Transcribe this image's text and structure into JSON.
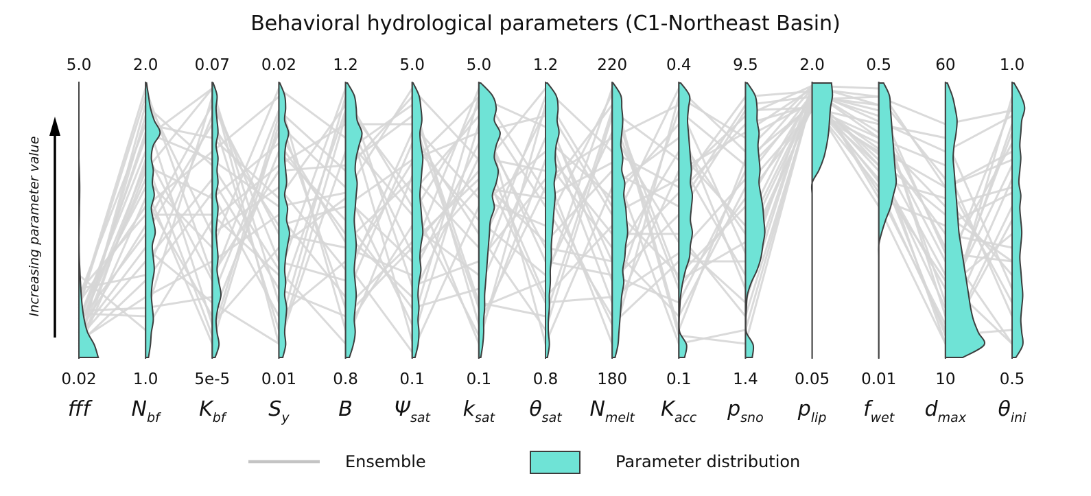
{
  "chart_data": {
    "type": "parallel-coordinates",
    "title": "Behavioral hydrological parameters (C1-Northeast Basin)",
    "ylabel": "Increasing parameter value",
    "colors": {
      "ensemble": "#d6d6d6",
      "distribution_fill": "#6fe3d6",
      "distribution_edge": "#3c3c3c",
      "axis": "#444444"
    },
    "axes": [
      {
        "base": "fff",
        "sub": "",
        "top": "5.0",
        "bottom": "0.02"
      },
      {
        "base": "N",
        "sub": "bf",
        "top": "2.0",
        "bottom": "1.0"
      },
      {
        "base": "K",
        "sub": "bf",
        "top": "0.07",
        "bottom": "5e-5"
      },
      {
        "base": "S",
        "sub": "y",
        "top": "0.02",
        "bottom": "0.01"
      },
      {
        "base": "B",
        "sub": "",
        "top": "1.2",
        "bottom": "0.8"
      },
      {
        "base": "Ψ",
        "sub": "sat",
        "top": "5.0",
        "bottom": "0.1"
      },
      {
        "base": "k",
        "sub": "sat",
        "top": "5.0",
        "bottom": "0.1"
      },
      {
        "base": "θ",
        "sub": "sat",
        "top": "1.2",
        "bottom": "0.8"
      },
      {
        "base": "N",
        "sub": "melt",
        "top": "220",
        "bottom": "180"
      },
      {
        "base": "K",
        "sub": "acc",
        "top": "0.4",
        "bottom": "0.1"
      },
      {
        "base": "p",
        "sub": "sno",
        "top": "9.5",
        "bottom": "1.4"
      },
      {
        "base": "p",
        "sub": "lip",
        "top": "2.0",
        "bottom": "0.05"
      },
      {
        "base": "f",
        "sub": "wet",
        "top": "0.5",
        "bottom": "0.01"
      },
      {
        "base": "d",
        "sub": "max",
        "top": "60",
        "bottom": "10"
      },
      {
        "base": "θ",
        "sub": "ini",
        "top": "1.0",
        "bottom": "0.5"
      }
    ],
    "densities": [
      [
        0,
        0,
        0,
        0,
        0,
        0,
        0,
        0.02,
        0.04,
        0.04,
        0.03,
        0.02,
        0.01,
        0.01,
        0.02,
        0.05,
        0.08,
        0.12,
        0.18,
        0.28,
        0.45,
        0.8,
        1.0
      ],
      [
        0.05,
        0.15,
        0.25,
        0.45,
        0.75,
        0.4,
        0.3,
        0.4,
        0.35,
        0.45,
        0.3,
        0.4,
        0.5,
        0.35,
        0.4,
        0.45,
        0.35,
        0.3,
        0.35,
        0.4,
        0.3,
        0.25,
        0.15
      ],
      [
        0.05,
        0.25,
        0.2,
        0.25,
        0.3,
        0.2,
        0.3,
        0.25,
        0.3,
        0.2,
        0.3,
        0.25,
        0.2,
        0.25,
        0.3,
        0.25,
        0.35,
        0.45,
        0.3,
        0.2,
        0.25,
        0.35,
        0.15
      ],
      [
        0.05,
        0.3,
        0.35,
        0.3,
        0.5,
        0.35,
        0.3,
        0.35,
        0.4,
        0.3,
        0.45,
        0.4,
        0.55,
        0.45,
        0.35,
        0.3,
        0.35,
        0.3,
        0.4,
        0.35,
        0.3,
        0.35,
        0.2
      ],
      [
        0.1,
        0.45,
        0.55,
        0.6,
        0.85,
        0.7,
        0.55,
        0.5,
        0.6,
        0.55,
        0.5,
        0.45,
        0.5,
        0.55,
        0.5,
        0.45,
        0.5,
        0.55,
        0.5,
        0.45,
        0.5,
        0.4,
        0.2
      ],
      [
        0.05,
        0.35,
        0.45,
        0.5,
        0.4,
        0.45,
        0.55,
        0.5,
        0.45,
        0.4,
        0.45,
        0.5,
        0.55,
        0.45,
        0.4,
        0.45,
        0.35,
        0.3,
        0.35,
        0.3,
        0.35,
        0.3,
        0.15
      ],
      [
        0.1,
        0.7,
        0.9,
        0.8,
        1.1,
        0.9,
        0.8,
        1.0,
        0.9,
        0.7,
        0.8,
        0.6,
        0.55,
        0.5,
        0.45,
        0.4,
        0.35,
        0.3,
        0.3,
        0.25,
        0.25,
        0.2,
        0.1
      ],
      [
        0.1,
        0.55,
        0.65,
        0.6,
        0.7,
        0.55,
        0.5,
        0.55,
        0.45,
        0.5,
        0.45,
        0.4,
        0.35,
        0.3,
        0.3,
        0.25,
        0.25,
        0.2,
        0.2,
        0.15,
        0.15,
        0.2,
        0.1
      ],
      [
        0.05,
        0.45,
        0.5,
        0.55,
        0.5,
        0.45,
        0.55,
        0.5,
        0.65,
        0.6,
        0.7,
        0.75,
        0.8,
        0.7,
        0.65,
        0.55,
        0.6,
        0.5,
        0.45,
        0.4,
        0.35,
        0.3,
        0.15
      ],
      [
        0.1,
        0.55,
        0.5,
        0.45,
        0.5,
        0.55,
        0.6,
        0.65,
        0.6,
        0.7,
        0.65,
        0.6,
        0.7,
        0.6,
        0.55,
        0.35,
        0.2,
        0.1,
        0.05,
        0.02,
        0.05,
        0.4,
        0.3
      ],
      [
        0.1,
        0.5,
        0.6,
        0.6,
        0.7,
        0.65,
        0.7,
        0.75,
        0.7,
        0.8,
        0.9,
        0.95,
        1.0,
        0.9,
        0.8,
        0.6,
        0.3,
        0.1,
        0.05,
        0.02,
        0.05,
        0.4,
        0.35
      ],
      [
        1.0,
        1.05,
        0.95,
        0.9,
        0.85,
        0.75,
        0.6,
        0.35,
        0.0,
        0,
        0,
        0,
        0,
        0,
        0,
        0,
        0,
        0,
        0,
        0,
        0,
        0,
        0
      ],
      [
        0.25,
        0.55,
        0.6,
        0.65,
        0.7,
        0.75,
        0.8,
        0.85,
        0.9,
        0.75,
        0.6,
        0.35,
        0.15,
        0.0,
        0,
        0,
        0,
        0,
        0,
        0,
        0,
        0,
        0
      ],
      [
        0.1,
        0.35,
        0.5,
        0.6,
        0.55,
        0.45,
        0.4,
        0.45,
        0.5,
        0.55,
        0.6,
        0.65,
        0.7,
        0.8,
        0.9,
        1.0,
        1.1,
        1.2,
        1.3,
        1.45,
        1.7,
        2.0,
        0.9
      ],
      [
        0.1,
        0.45,
        0.65,
        0.5,
        0.45,
        0.4,
        0.45,
        0.4,
        0.35,
        0.45,
        0.4,
        0.45,
        0.5,
        0.45,
        0.4,
        0.45,
        0.5,
        0.55,
        0.5,
        0.45,
        0.5,
        0.55,
        0.2
      ]
    ],
    "ensemble": [
      [
        0.18,
        0.95,
        0.45,
        0.62,
        0.32,
        0.71,
        0.95,
        0.84,
        0.2,
        0.9,
        0.7,
        0.98,
        0.95,
        0.85,
        0.9
      ],
      [
        0.05,
        0.88,
        0.12,
        0.4,
        0.58,
        0.35,
        0.62,
        0.58,
        0.71,
        0.05,
        0.1,
        0.95,
        0.72,
        0.52,
        0.35
      ],
      [
        0.12,
        0.8,
        0.98,
        0.2,
        0.9,
        0.06,
        0.85,
        0.4,
        0.35,
        0.6,
        0.85,
        0.92,
        0.62,
        0.1,
        0.65
      ],
      [
        0.2,
        0.55,
        0.75,
        0.95,
        0.1,
        0.48,
        0.3,
        0.95,
        0.55,
        0.3,
        0.55,
        0.96,
        0.88,
        0.4,
        0.05
      ],
      [
        0.08,
        0.4,
        0.2,
        0.05,
        0.75,
        0.92,
        0.2,
        0.15,
        0.9,
        0.72,
        0.3,
        0.99,
        0.98,
        0.62,
        0.75
      ],
      [
        0.1,
        0.7,
        0.58,
        0.78,
        0.45,
        0.22,
        0.73,
        0.68,
        0.05,
        0.95,
        0.8,
        0.93,
        0.55,
        0.05,
        0.5
      ],
      [
        0.25,
        0.3,
        0.88,
        0.1,
        0.95,
        0.55,
        0.08,
        0.72,
        0.4,
        0.15,
        0.62,
        0.9,
        0.75,
        0.3,
        0.92
      ],
      [
        0.06,
        0.22,
        0.35,
        0.52,
        0.22,
        0.78,
        0.5,
        0.3,
        0.82,
        0.42,
        0.2,
        0.97,
        0.8,
        0.7,
        0.15
      ],
      [
        0.15,
        0.62,
        0.05,
        0.85,
        0.62,
        0.12,
        0.95,
        0.05,
        0.62,
        0.8,
        0.45,
        0.94,
        0.68,
        0.25,
        0.45
      ],
      [
        0.04,
        0.92,
        0.7,
        0.32,
        0.05,
        0.66,
        0.4,
        0.9,
        0.28,
        0.52,
        0.9,
        0.91,
        0.85,
        0.8,
        0.25
      ],
      [
        0.3,
        0.1,
        0.5,
        0.7,
        0.85,
        0.85,
        0.58,
        0.48,
        0.96,
        0.08,
        0.05,
        0.95,
        0.92,
        0.15,
        0.85
      ],
      [
        0.09,
        0.48,
        0.92,
        0.45,
        0.4,
        0.3,
        0.78,
        0.22,
        0.48,
        0.98,
        0.75,
        0.99,
        0.58,
        0.48,
        0.6
      ],
      [
        0.14,
        0.75,
        0.28,
        0.9,
        0.68,
        0.95,
        0.12,
        0.62,
        0.12,
        0.35,
        0.35,
        0.92,
        0.7,
        0.08,
        0.1
      ],
      [
        0.07,
        0.35,
        0.65,
        0.25,
        0.15,
        0.4,
        0.68,
        0.98,
        0.75,
        0.62,
        0.95,
        0.97,
        0.82,
        0.35,
        0.78
      ],
      [
        0.22,
        0.85,
        0.8,
        0.58,
        0.92,
        0.6,
        0.88,
        0.35,
        0.3,
        0.2,
        0.68,
        0.93,
        0.65,
        0.58,
        0.3
      ],
      [
        0.03,
        0.58,
        0.15,
        0.75,
        0.5,
        0.18,
        0.25,
        0.8,
        0.58,
        0.85,
        0.25,
        0.96,
        0.9,
        0.2,
        0.7
      ],
      [
        0.16,
        0.15,
        0.95,
        0.35,
        0.28,
        0.82,
        0.45,
        0.1,
        0.88,
        0.25,
        0.58,
        0.9,
        0.78,
        0.45,
        0.4
      ],
      [
        0.11,
        0.65,
        0.4,
        0.98,
        0.8,
        0.52,
        0.92,
        0.55,
        0.15,
        0.68,
        0.82,
        0.98,
        0.6,
        0.12,
        0.95
      ],
      [
        0.05,
        0.28,
        0.6,
        0.15,
        0.35,
        0.02,
        0.55,
        0.75,
        0.45,
        0.45,
        0.15,
        0.94,
        0.95,
        0.65,
        0.2
      ],
      [
        0.19,
        0.98,
        0.3,
        0.68,
        0.7,
        0.88,
        0.18,
        0.28,
        0.98,
        0.1,
        0.72,
        0.92,
        0.74,
        0.05,
        0.55
      ],
      [
        0.13,
        0.45,
        0.85,
        0.48,
        0.55,
        0.72,
        0.82,
        0.88,
        0.35,
        0.75,
        0.48,
        0.97,
        0.86,
        0.75,
        0.88
      ],
      [
        0.02,
        0.72,
        0.08,
        0.88,
        0.18,
        0.42,
        0.65,
        0.42,
        0.68,
        0.55,
        0.92,
        0.95,
        0.64,
        0.28,
        0.05
      ],
      [
        0.24,
        0.52,
        0.52,
        0.3,
        0.98,
        0.26,
        0.35,
        0.65,
        0.8,
        0.92,
        0.38,
        0.91,
        0.8,
        0.55,
        0.62
      ],
      [
        0.09,
        0.82,
        0.72,
        0.55,
        0.6,
        0.98,
        0.72,
        0.2,
        0.22,
        0.38,
        0.65,
        0.96,
        0.7,
        0.18,
        0.82
      ],
      [
        0.17,
        0.18,
        0.22,
        0.82,
        0.42,
        0.65,
        0.05,
        0.92,
        0.52,
        0.65,
        0.88,
        0.99,
        0.92,
        0.38,
        0.35
      ],
      [
        0.06,
        0.68,
        0.98,
        0.05,
        0.88,
        0.38,
        0.98,
        0.6,
        0.92,
        0.28,
        0.42,
        0.93,
        0.76,
        0.62,
        0.72
      ]
    ]
  },
  "legend": {
    "ensemble_label": "Ensemble",
    "distribution_label": "Parameter distribution"
  }
}
